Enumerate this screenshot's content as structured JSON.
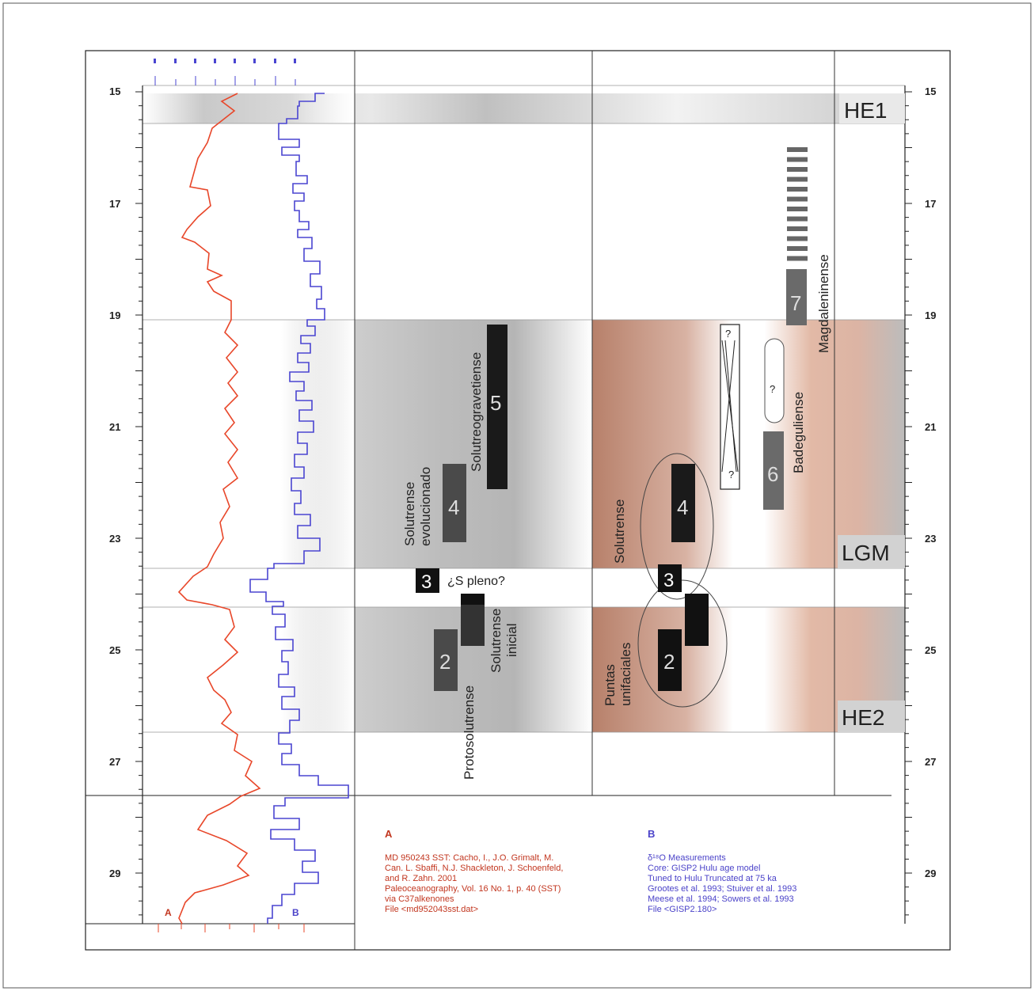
{
  "axis": {
    "y_labels": [
      "15",
      "17",
      "19",
      "21",
      "23",
      "25",
      "27",
      "29"
    ],
    "range": [
      15,
      30
    ]
  },
  "bands": {
    "he1": "HE1",
    "lgm": "LGM",
    "he2": "HE2"
  },
  "left_column": {
    "box3_num": "3",
    "box3_text": "¿S pleno?",
    "box4_num": "4",
    "box4_label_1": "Solutrense",
    "box4_label_2": "evolucionado",
    "box5_num": "5",
    "box5_label": "Solutreogravetiense",
    "box2_num": "2",
    "box2_label": "Protosolutrense",
    "inicial_label_1": "Solutrense",
    "inicial_label_2": "inicial"
  },
  "right_column": {
    "solutrense_label": "Solutrense",
    "box4_num": "4",
    "box3_num": "3",
    "box2_num": "2",
    "puntas_label_1": "Puntas",
    "puntas_label_2": "unifaciales",
    "q1": "?",
    "q2": "?",
    "q3": "?",
    "box6_num": "6",
    "badeguliense_label": "Badeguliense",
    "box7_num": "7",
    "magdaleniense_label": "Magdaleninense"
  },
  "curves": {
    "a_label": "A",
    "b_label": "B",
    "a_color": "#e8472a",
    "b_color": "#4a45d1"
  },
  "legend": {
    "a_title": "A",
    "a_lines": [
      "MD 950243  SST: Cacho, I., J.O. Grimalt, M.",
      "Can. L. Sbaffi, N.J. Shackleton, J. Schoenfeld,",
      "and R. Zahn. 2001",
      "Paleoceanography, Vol. 16 No. 1, p. 40 (SST)",
      "via C37alkenones",
      "File <md952043sst.dat>"
    ],
    "b_title": "B",
    "b_lines": [
      "δ¹⁸O Measurements",
      "Core: GISP2 Hulu age model",
      "Tuned to Hulu Truncated at 75 ka",
      "Grootes et al. 1993; Stuiver et al. 1993",
      "Meese et al. 1994; Sowers et al. 1993",
      "File <GISP2.180>"
    ]
  }
}
